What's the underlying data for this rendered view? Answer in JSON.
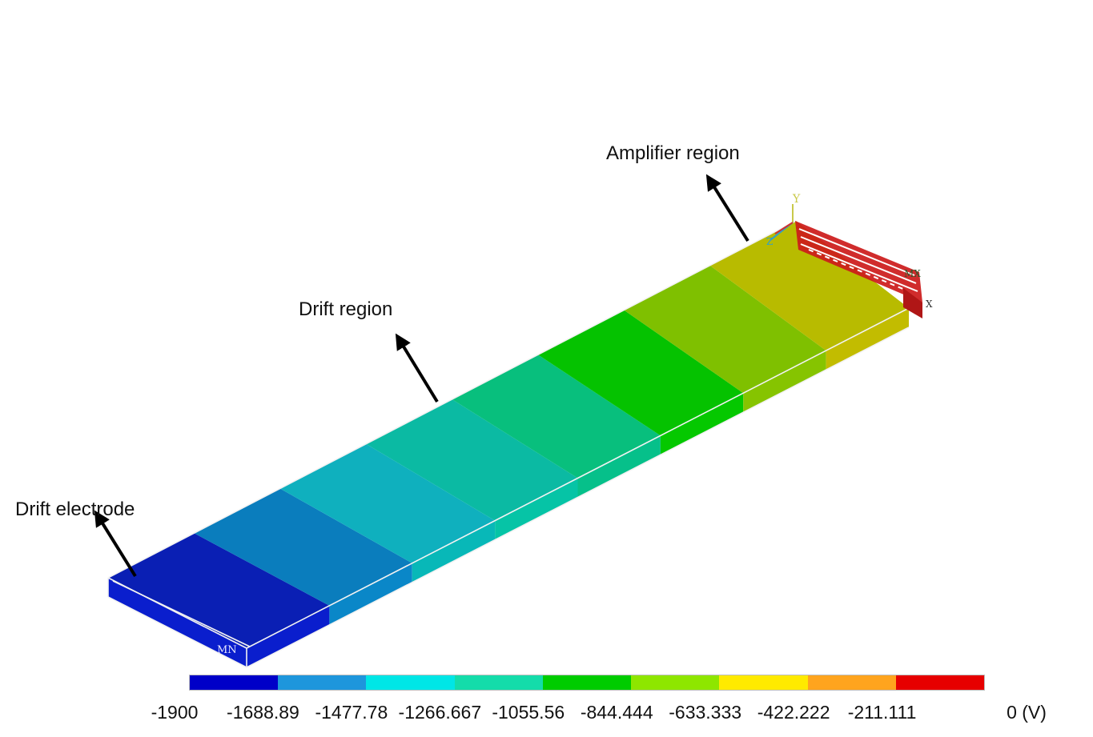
{
  "annotations": {
    "amplifier_region": "Amplifier region",
    "drift_region": "Drift region",
    "drift_electrode": "Drift electrode"
  },
  "model_labels": {
    "min_marker": "MN",
    "max_marker": "MX",
    "axis_y": "Y",
    "axis_z": "Z",
    "axis_x": "X"
  },
  "legend": {
    "colors": [
      "#0000c8",
      "#1e96dc",
      "#00e6e6",
      "#14dcaa",
      "#00cc00",
      "#8ee600",
      "#ffea00",
      "#ffa41e",
      "#e60000"
    ],
    "ticks": [
      "-1900",
      "-1688.89",
      "-1477.78",
      "-1266.667",
      "-1055.56",
      "-844.444",
      "-633.333",
      "-422.222",
      "-211.111",
      "0 (V)"
    ]
  },
  "model": {
    "segment_top_colors": [
      "#0a1fb4",
      "#0a7dbd",
      "#0fb0be",
      "#0bbaa3",
      "#08bf7d",
      "#05c200",
      "#7fc000",
      "#b8bb00"
    ],
    "segment_side_colors": [
      "#0a1ecd",
      "#0a87c8",
      "#08b8b8",
      "#06c4a6",
      "#06c08a",
      "#05c800",
      "#86c400",
      "#c2bc00"
    ],
    "amplifier_color": "#d21e1e"
  }
}
